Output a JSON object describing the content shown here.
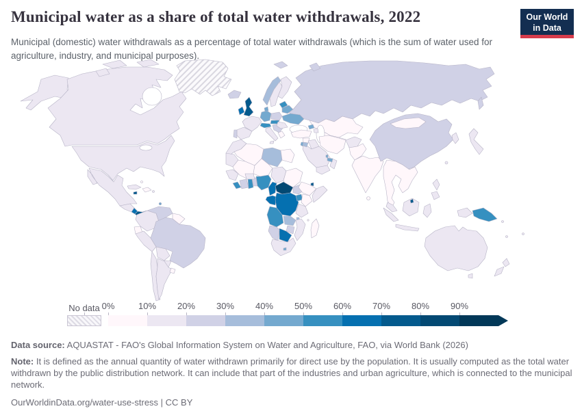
{
  "header": {
    "title": "Municipal water as a share of total water withdrawals, 2022",
    "subtitle": "Municipal (domestic) water withdrawals as a percentage of total water withdrawals (which is the sum of water used for agriculture, industry, and municipal purposes)."
  },
  "logo": {
    "line1": "Our World",
    "line2": "in Data",
    "bg_color": "#132e51",
    "bar_color": "#d73c4c"
  },
  "legend": {
    "no_data_label": "No data",
    "ticks": [
      "0%",
      "10%",
      "20%",
      "30%",
      "40%",
      "50%",
      "60%",
      "70%",
      "80%",
      "90%"
    ],
    "colors": [
      "#fff7fb",
      "#ece7f2",
      "#d0d1e6",
      "#a6bddb",
      "#74a9cf",
      "#3690c0",
      "#0570b0",
      "#045a8d",
      "#034973",
      "#023858"
    ]
  },
  "footer": {
    "datasource_label": "Data source:",
    "datasource_text": " AQUASTAT - FAO's Global Information System on Water and Agriculture, FAO, via World Bank (2026)",
    "note_label": "Note:",
    "note_text": " It is defined as the annual quantity of water withdrawn primarily for direct use by the population. It is usually computed as the total water withdrawn by the public distribution network. It can include that part of the industries and urban agriculture, which is connected to the municipal network.",
    "citation": "OurWorldinData.org/water-use-stress | CC BY"
  },
  "map": {
    "ocean_color": "#ffffff",
    "border_color": "#b6b3c6",
    "unit": "% of total water withdrawals",
    "regions": {
      "greenland": "nodata",
      "alaska": 1,
      "canada": 1,
      "arctic-island-1": 1,
      "arctic-island-2": 1,
      "arctic-island-3": 1,
      "usa": 1,
      "mexico": 1,
      "central-america": 1,
      "costa-rica": 6,
      "panama": 7,
      "cuba": 1,
      "jamaica": 7,
      "hispaniola": 0,
      "bahamas": 0,
      "puerto-rico": 1,
      "trinidad": 4,
      "colombia": 1,
      "venezuela": 2,
      "guyanas": 0,
      "ecuador": 0,
      "peru": 1,
      "brazil": 2,
      "bolivia": 1,
      "paraguay": 1,
      "chile": 1,
      "argentina": 1,
      "uruguay": 0,
      "iceland": 2,
      "uk": 7,
      "ireland": 6,
      "norway": 3,
      "sweden": 1,
      "finland": 1,
      "denmark": 4,
      "france": 1,
      "spain": 1,
      "portugal": 2,
      "germany": 4,
      "poland": 2,
      "czech-slovakia": 5,
      "austria-switzerland": 5,
      "italy": 1,
      "sicily": 1,
      "balkans": 2,
      "greece": 0,
      "romania": 1,
      "baltics": 5,
      "belarus": 4,
      "ukraine": 4,
      "russia": 2,
      "svalbard": 2,
      "novaya-zemlya": 2,
      "sakhalin": 2,
      "kazakhstan": 0,
      "central-asia": 0,
      "georgia": 4,
      "azerbaijan": 1,
      "turkey": 0,
      "syria": 0,
      "iraq": 1,
      "iran": 0,
      "afghanistan": 1,
      "pakistan": 0,
      "saudi-arabia": 1,
      "jordan": 3,
      "israel": 4,
      "yemen": 1,
      "oman": 1,
      "uae": 4,
      "qatar": 4,
      "morocco": 1,
      "mauritania": 1,
      "algeria": 0,
      "libya": 3,
      "egypt": 0,
      "mali": 0,
      "niger": 0,
      "chad": 1,
      "sudan": 0,
      "senegal-guinea": 1,
      "liberia": 5,
      "ivory-coast": 2,
      "ghana": 5,
      "togo-benin": 2,
      "burkina-faso": 1,
      "nigeria": 5,
      "cameroon": 6,
      "central-african-republic": 8,
      "south-sudan": 2,
      "ethiopia": 0,
      "djibouti": 7,
      "somalia": 1,
      "gabon-congo": 6,
      "drc": 6,
      "uganda": 5,
      "kenya": 0,
      "tanzania": 1,
      "angola": 5,
      "zambia": 3,
      "malawi": 3,
      "mozambique": 1,
      "zimbabwe": 2,
      "botswana": 6,
      "namibia": 2,
      "south-africa": 1,
      "lesotho": 4,
      "madagascar": 0,
      "india": 0,
      "sri-lanka": 0,
      "china": 2,
      "mongolia": 0,
      "korea": 1,
      "japan": 1,
      "taiwan": 1,
      "se-asia": 0,
      "malaysia": 1,
      "brunei": 7,
      "borneo": 1,
      "sumatra": 1,
      "java": 1,
      "sulawesi": 1,
      "west-papua": 1,
      "png": 5,
      "philippines": 1,
      "philippines-south": 1,
      "australia": 1,
      "tasmania": 1,
      "new-zealand-north": 1,
      "new-zealand-south": 1,
      "solomon": 1,
      "fiji": 1,
      "new-caledonia": 1,
      "comoros": 0
    }
  }
}
